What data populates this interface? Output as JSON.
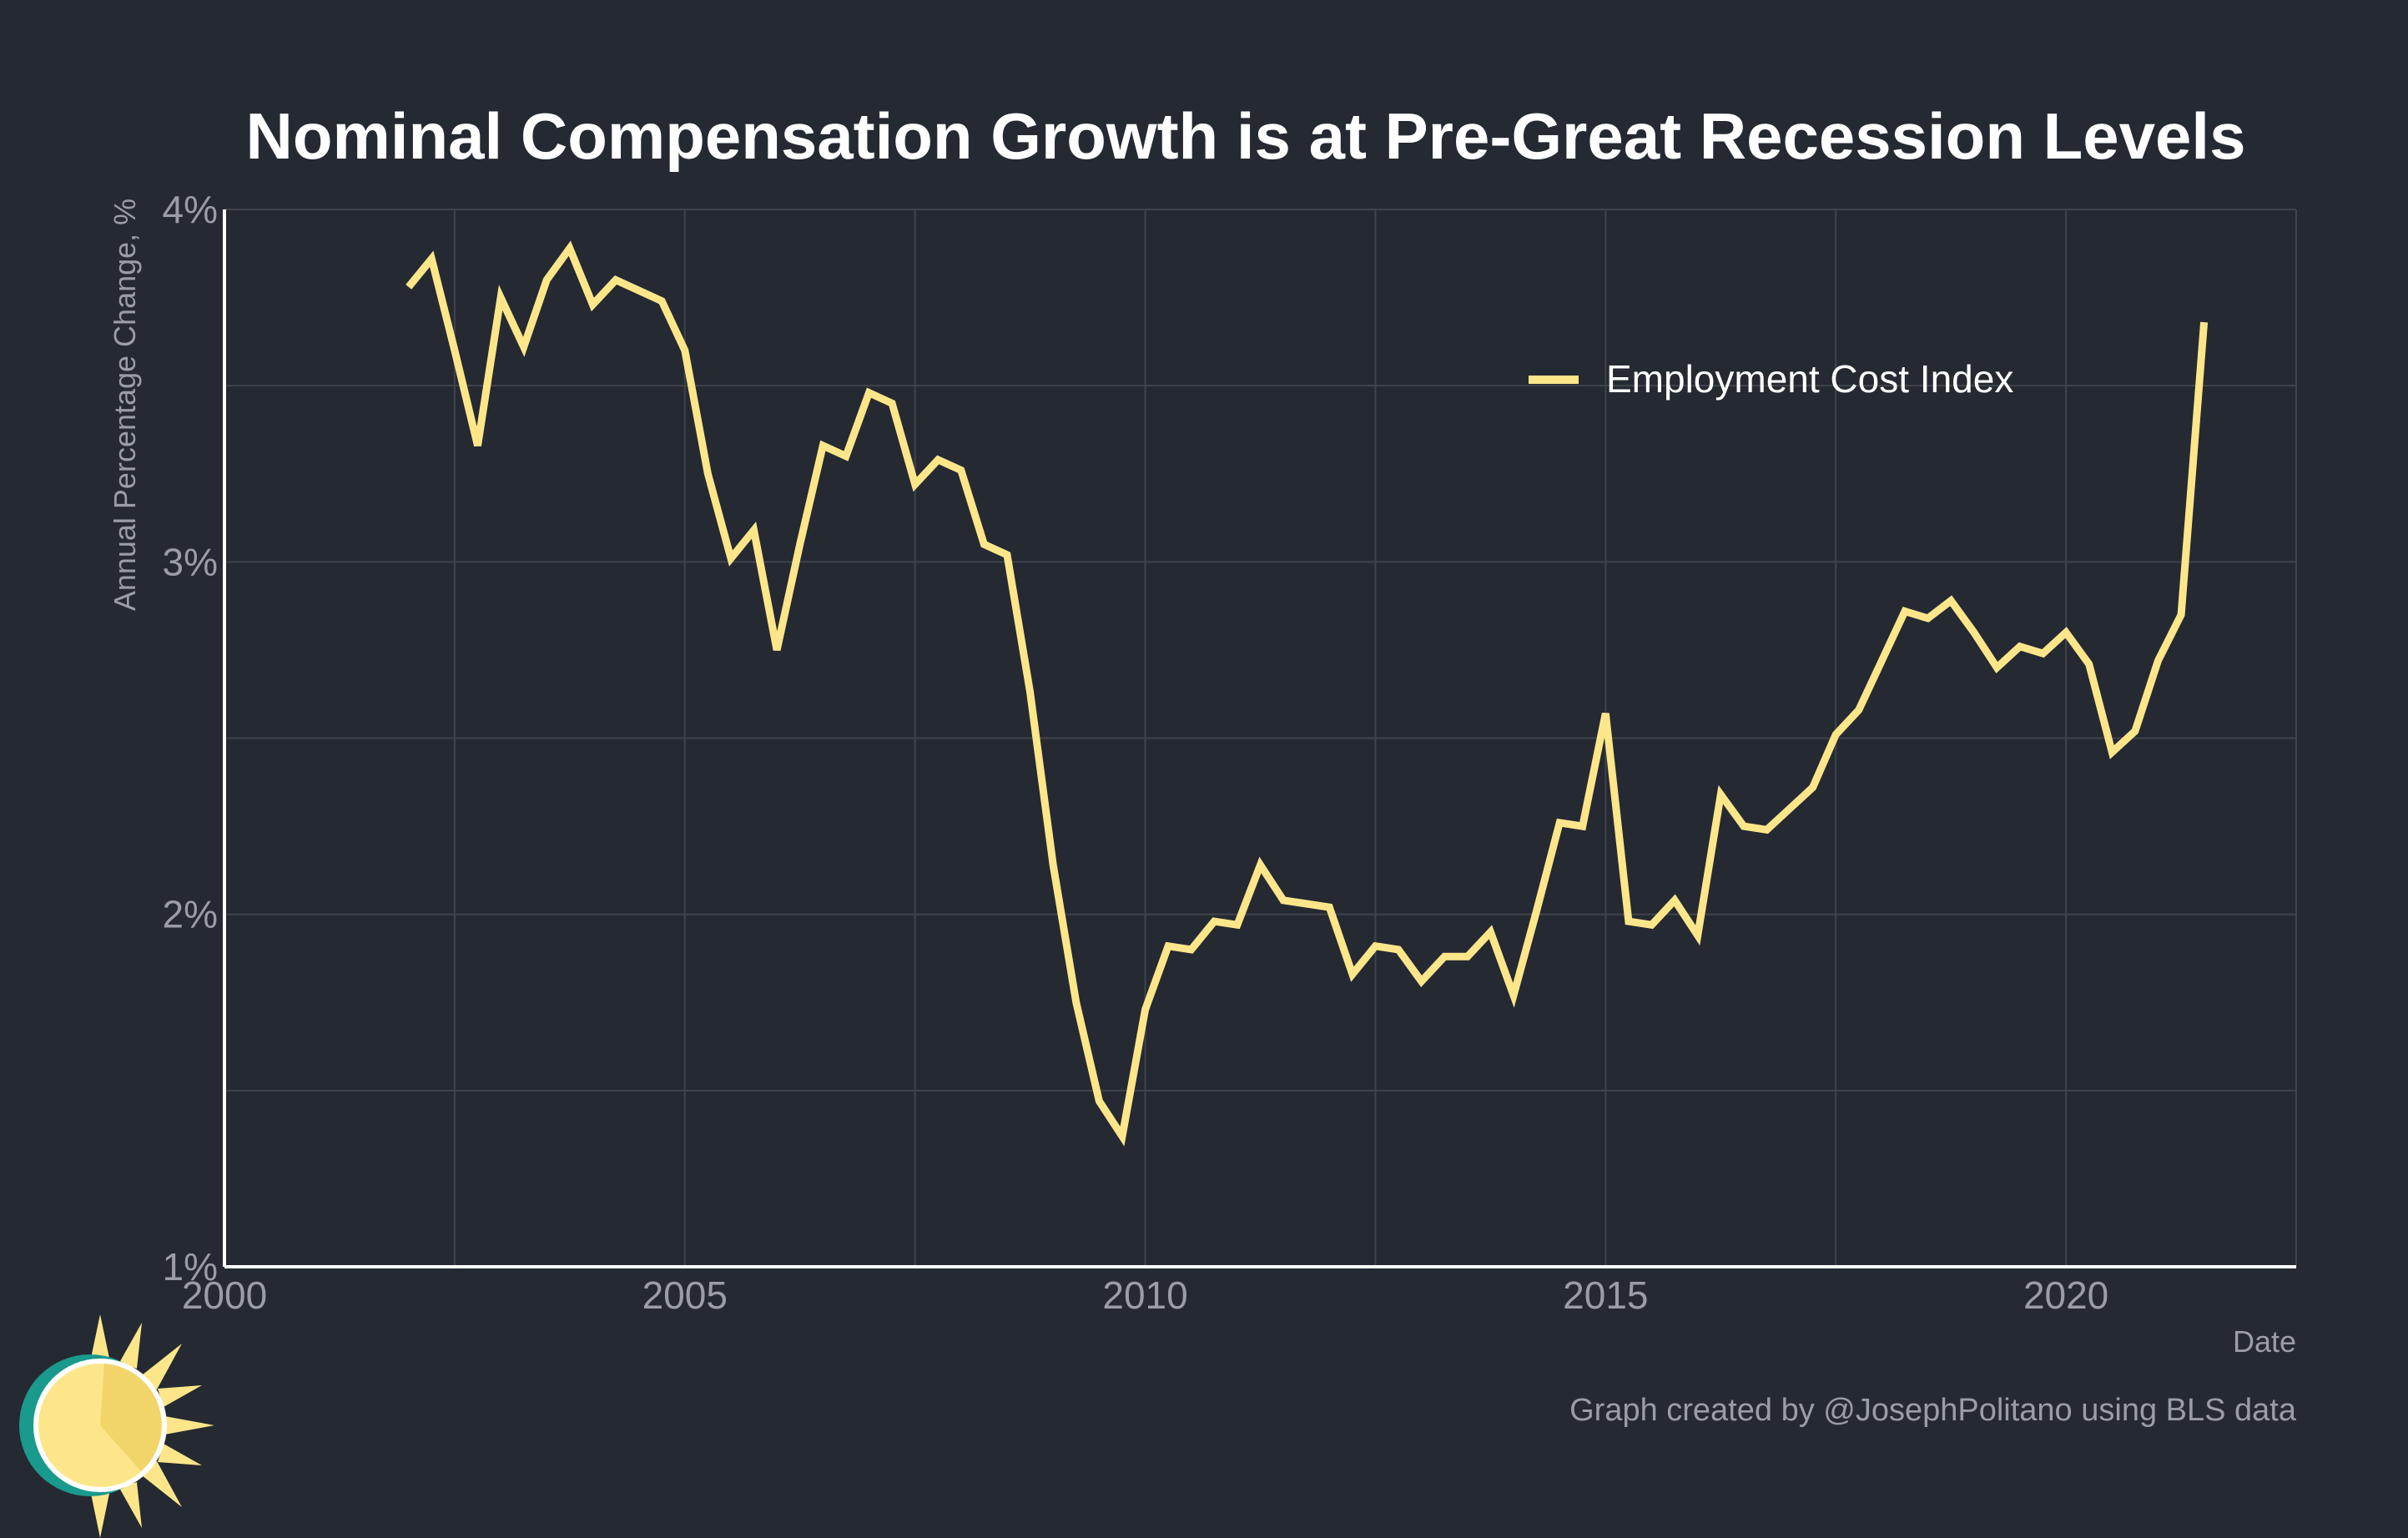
{
  "chart_data": {
    "type": "line",
    "title": "Nominal Compensation Growth is at Pre-Great Recession Levels",
    "xlabel": "Date",
    "ylabel": "Annual Percentage Change, %",
    "xlim": [
      2000,
      2022.5
    ],
    "ylim": [
      1,
      4
    ],
    "x_ticks": [
      2000,
      2005,
      2010,
      2015,
      2020
    ],
    "x_tick_labels": [
      "2000",
      "2005",
      "2010",
      "2015",
      "2020"
    ],
    "y_ticks": [
      1,
      2,
      3,
      4
    ],
    "y_tick_labels": [
      "1%",
      "2%",
      "3%",
      "4%"
    ],
    "grid": true,
    "legend_position": "top-right",
    "series": [
      {
        "name": "Employment Cost Index",
        "color": "#fde68a",
        "x": [
          2002.0,
          2002.25,
          2002.5,
          2002.75,
          2003.0,
          2003.25,
          2003.5,
          2003.75,
          2004.0,
          2004.25,
          2004.5,
          2004.75,
          2005.0,
          2005.25,
          2005.5,
          2005.75,
          2006.0,
          2006.25,
          2006.5,
          2006.75,
          2007.0,
          2007.25,
          2007.5,
          2007.75,
          2008.0,
          2008.25,
          2008.5,
          2008.75,
          2009.0,
          2009.25,
          2009.5,
          2009.75,
          2010.0,
          2010.25,
          2010.5,
          2010.75,
          2011.0,
          2011.25,
          2011.5,
          2011.75,
          2012.0,
          2012.25,
          2012.5,
          2012.75,
          2013.0,
          2013.25,
          2013.5,
          2013.75,
          2014.0,
          2014.25,
          2014.5,
          2014.75,
          2015.0,
          2015.25,
          2015.5,
          2015.75,
          2016.0,
          2016.25,
          2016.5,
          2016.75,
          2017.0,
          2017.25,
          2017.5,
          2017.75,
          2018.0,
          2018.25,
          2018.5,
          2018.75,
          2019.0,
          2019.25,
          2019.5,
          2019.75,
          2020.0,
          2020.25,
          2020.5,
          2020.75,
          2021.0,
          2021.25,
          2021.5
        ],
        "values": [
          3.78,
          3.86,
          3.6,
          3.33,
          3.75,
          3.61,
          3.8,
          3.89,
          3.73,
          3.8,
          3.77,
          3.74,
          3.6,
          3.25,
          3.01,
          3.09,
          2.75,
          3.05,
          3.33,
          3.3,
          3.48,
          3.45,
          3.22,
          3.29,
          3.26,
          3.05,
          3.02,
          2.63,
          2.14,
          1.75,
          1.47,
          1.37,
          1.73,
          1.91,
          1.9,
          1.98,
          1.97,
          2.14,
          2.04,
          2.03,
          2.02,
          1.83,
          1.91,
          1.9,
          1.81,
          1.88,
          1.88,
          1.95,
          1.77,
          2.01,
          2.26,
          2.25,
          2.57,
          1.98,
          1.97,
          2.04,
          1.94,
          2.34,
          2.25,
          2.24,
          2.3,
          2.36,
          2.51,
          2.58,
          2.72,
          2.86,
          2.84,
          2.89,
          2.8,
          2.7,
          2.76,
          2.74,
          2.8,
          2.71,
          2.46,
          2.52,
          2.72,
          2.85,
          3.68
        ]
      }
    ]
  },
  "credit": "Graph created by @JosephPolitano using BLS data",
  "colors": {
    "background": "#252932",
    "line": "#fde68a",
    "grid": "#3f434c",
    "axis": "#ffffff",
    "logo_ring": "#1a9a8c",
    "logo_sun": "#fde68a"
  },
  "logo": {
    "icon": "sun-icon"
  }
}
